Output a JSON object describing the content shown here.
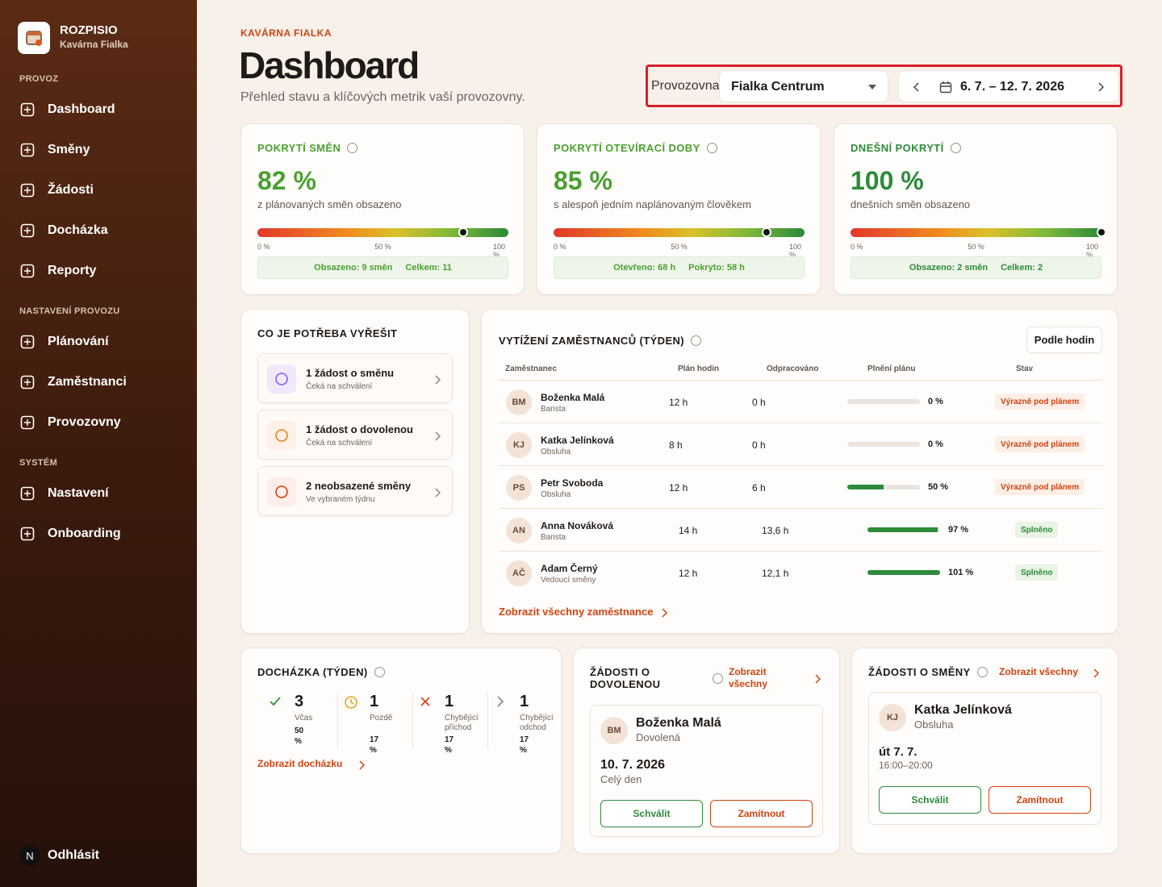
{
  "sidebar": {
    "brand": "ROZPISIO",
    "subtitle": "Kavárna Fialka",
    "sections": [
      {
        "title": "PROVOZ",
        "items": [
          "Dashboard",
          "Směny",
          "Žádosti",
          "Docházka",
          "Reporty"
        ]
      },
      {
        "title": "NASTAVENÍ PROVOZU",
        "items": [
          "Plánování",
          "Zaměstnanci",
          "Provozovny"
        ]
      },
      {
        "title": "SYSTÉM",
        "items": [
          "Nastavení",
          "Onboarding"
        ]
      }
    ],
    "avatar": "N",
    "logout": "Odhlásit"
  },
  "header": {
    "eyebrow": "KAVÁRNA FIALKA",
    "title": "Dashboard",
    "subtitle": "Přehled stavu a klíčových metrik vaší provozovny.",
    "location_label": "Provozovna",
    "location": "Fialka Centrum",
    "date_range": "6. 7. – 12. 7. 2026"
  },
  "kpis": [
    {
      "title": "POKRYTÍ SMĚN",
      "value": 82,
      "value_label": "82 %",
      "caption": "z plánovaných směn obsazeno",
      "scale": [
        {
          "value": 0,
          "label": "0 %"
        },
        {
          "value": 50,
          "label": "50 %"
        },
        {
          "value": 100,
          "label": "100 %"
        }
      ],
      "stats": [
        "Obsazeno: 9 směn",
        "Celkem: 11"
      ]
    },
    {
      "title": "POKRYTÍ OTEVÍRACÍ DOBY",
      "value": 85,
      "value_label": "85 %",
      "caption": "s alespoň jedním naplánovaným člověkem",
      "scale": [
        {
          "value": 0,
          "label": "0 %"
        },
        {
          "value": 50,
          "label": "50 %"
        },
        {
          "value": 100,
          "label": "100 %"
        }
      ],
      "stats": [
        "Otevřeno: 68 h",
        "Pokryto: 58 h"
      ]
    },
    {
      "title": "DNEŠNÍ POKRYTÍ",
      "value": 100,
      "value_label": "100 %",
      "caption": "dnešních směn obsazeno",
      "scale": [
        {
          "value": 0,
          "label": "0 %"
        },
        {
          "value": 50,
          "label": "50 %"
        },
        {
          "value": 100,
          "label": "100 %"
        }
      ],
      "stats": [
        "Obsazeno: 2 směn",
        "Celkem: 2"
      ]
    }
  ],
  "todo": {
    "title": "CO JE POTŘEBA VYŘEŠIT",
    "items": [
      {
        "title": "1 žádost o směnu",
        "subtitle": "Čeká na schválení"
      },
      {
        "title": "1 žádost o dovolenou",
        "subtitle": "Čeká na schválení"
      },
      {
        "title": "2 neobsazené směny",
        "subtitle": "Ve vybraném týdnu"
      }
    ]
  },
  "workload": {
    "title": "VYTÍŽENÍ ZAMĚSTNANCŮ (TÝDEN)",
    "toggle": "Podle hodin",
    "columns": [
      "Zaměstnanec",
      "Plán hodin",
      "Odpracováno",
      "Plnění plánu",
      "Stav"
    ],
    "rows": [
      {
        "initials": "BM",
        "name": "Boženka Malá",
        "role": "Barista",
        "planned": "12 h",
        "worked": "0 h",
        "fulfillment": 0,
        "fulfillment_label": "0 %",
        "status": "Výrazně pod plánem"
      },
      {
        "initials": "KJ",
        "name": "Katka Jelínková",
        "role": "Obsluha",
        "planned": "8 h",
        "worked": "0 h",
        "fulfillment": 0,
        "fulfillment_label": "0 %",
        "status": "Výrazně pod plánem"
      },
      {
        "initials": "PS",
        "name": "Petr Svoboda",
        "role": "Obsluha",
        "planned": "12 h",
        "worked": "6 h",
        "fulfillment": 50,
        "fulfillment_label": "50 %",
        "status": "Výrazně pod plánem"
      },
      {
        "initials": "AN",
        "name": "Anna Nováková",
        "role": "Barista",
        "planned": "14 h",
        "worked": "13,6 h",
        "fulfillment": 97,
        "fulfillment_label": "97 %",
        "status": "Splněno"
      },
      {
        "initials": "AČ",
        "name": "Adam Černý",
        "role": "Vedoucí směny",
        "planned": "12 h",
        "worked": "12,1 h",
        "fulfillment": 101,
        "fulfillment_label": "101 %",
        "status": "Splněno"
      }
    ],
    "link": "Zobrazit všechny zaměstnance"
  },
  "attendance": {
    "title": "DOCHÁZKA (TÝDEN)",
    "stats": [
      {
        "count": 3,
        "label": "Včas",
        "share": "50 %"
      },
      {
        "count": 1,
        "label": "Pozdě",
        "share": "17 %"
      },
      {
        "count": 1,
        "label": "Chybějící příchod",
        "share": "17 %"
      },
      {
        "count": 1,
        "label": "Chybějící odchod",
        "share": "17 %"
      }
    ],
    "link": "Zobrazit docházku"
  },
  "leave_requests": {
    "title": "ŽÁDOSTI O DOVOLENOU",
    "link": "Zobrazit všechny",
    "request": {
      "initials": "BM",
      "name": "Boženka Malá",
      "type": "Dovolená",
      "date": "10. 7. 2026",
      "duration": "Celý den",
      "approve": "Schválit",
      "reject": "Zamítnout"
    }
  },
  "shift_requests": {
    "title": "ŽÁDOSTI O SMĚNY",
    "link": "Zobrazit všechny",
    "request": {
      "initials": "KJ",
      "name": "Katka Jelínková",
      "role": "Obsluha",
      "date": "út 7. 7.",
      "time": "16:00–20:00",
      "approve": "Schválit",
      "reject": "Zamítnout"
    }
  }
}
